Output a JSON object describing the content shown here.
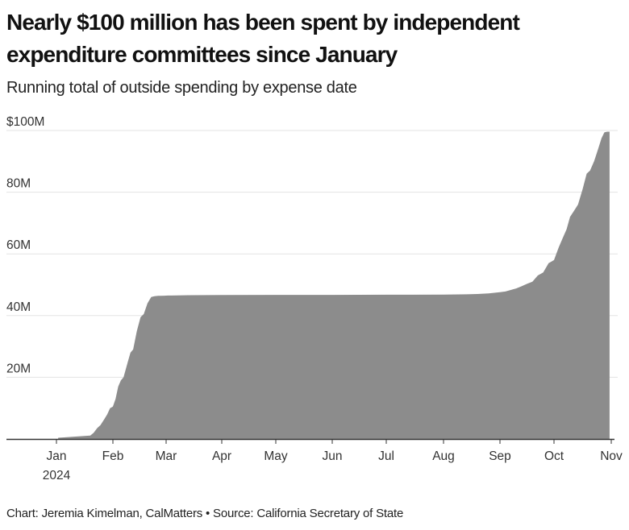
{
  "chart_data": {
    "type": "area",
    "title": "Nearly $100 million has been spent by independent expenditure committees since January",
    "subtitle": "Running total of outside spending by expense date",
    "xlabel": "",
    "ylabel": "",
    "ylim": [
      0,
      100
    ],
    "y_unit": "million USD",
    "y_ticks": [
      {
        "value": 20,
        "label": "20M"
      },
      {
        "value": 40,
        "label": "40M"
      },
      {
        "value": 60,
        "label": "60M"
      },
      {
        "value": 80,
        "label": "80M"
      },
      {
        "value": 100,
        "label": "$100M"
      }
    ],
    "x_ticks": [
      {
        "month": 0,
        "label": "Jan",
        "sublabel": "2024"
      },
      {
        "month": 1,
        "label": "Feb"
      },
      {
        "month": 2,
        "label": "Mar"
      },
      {
        "month": 3,
        "label": "Apr"
      },
      {
        "month": 4,
        "label": "May"
      },
      {
        "month": 5,
        "label": "Jun"
      },
      {
        "month": 6,
        "label": "Jul"
      },
      {
        "month": 7,
        "label": "Aug"
      },
      {
        "month": 8,
        "label": "Sep"
      },
      {
        "month": 9,
        "label": "Oct"
      },
      {
        "month": 10,
        "label": "Nov"
      }
    ],
    "xlim_months": [
      -0.5,
      10.03
    ],
    "grid": true,
    "legend": "none",
    "fill_color": "#8c8c8c",
    "series": [
      {
        "name": "Running total of outside spending",
        "x_months": [
          0.03,
          0.6,
          0.66,
          0.72,
          0.78,
          0.85,
          0.9,
          0.95,
          1.0,
          1.05,
          1.1,
          1.15,
          1.2,
          1.28,
          1.33,
          1.38,
          1.45,
          1.52,
          1.58,
          1.65,
          1.72,
          1.78,
          1.85,
          1.9,
          1.97,
          2.03,
          2.1,
          2.2,
          2.4,
          3.0,
          4.0,
          5.0,
          6.0,
          7.0,
          7.4,
          7.6,
          7.8,
          8.0,
          8.1,
          8.2,
          8.3,
          8.4,
          8.5,
          8.6,
          8.7,
          8.8,
          8.9,
          9.0,
          9.08,
          9.15,
          9.22,
          9.28,
          9.35,
          9.42,
          9.5,
          9.57,
          9.63,
          9.7,
          9.77,
          9.83,
          9.88,
          9.93,
          9.97
        ],
        "values": [
          0.4,
          1.1,
          2.0,
          3.5,
          4.5,
          6.5,
          8.0,
          10.0,
          10.5,
          13.0,
          17.0,
          19.0,
          20.0,
          25.0,
          28.0,
          29.0,
          35.0,
          39.5,
          40.5,
          44.0,
          46.0,
          46.3,
          46.4,
          46.4,
          46.45,
          46.5,
          46.5,
          46.55,
          46.6,
          46.65,
          46.7,
          46.7,
          46.75,
          46.8,
          46.9,
          47.0,
          47.2,
          47.6,
          47.8,
          48.3,
          48.8,
          49.5,
          50.3,
          51.0,
          53.0,
          54.0,
          57.0,
          58.0,
          62.0,
          65.0,
          68.0,
          72.0,
          74.0,
          76.0,
          81.0,
          86.0,
          87.0,
          90.0,
          94.0,
          97.5,
          99.4,
          99.6,
          99.6
        ]
      }
    ]
  },
  "footer": {
    "credit": "Chart: Jeremia Kimelman, CalMatters • Source: California Secretary of State"
  }
}
